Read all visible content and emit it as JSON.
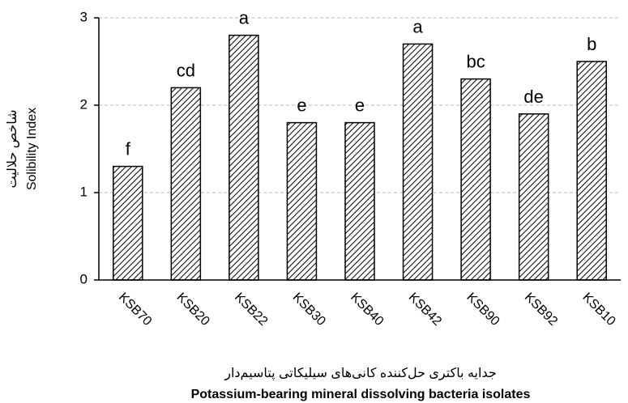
{
  "chart_data": {
    "type": "bar",
    "y_label": "Solibility Index",
    "y_label_fa": "شاخص حلالیت",
    "x_label_fa": "جدایه باکتری حل‌کننده کانی‌های سیلیکاتی پتاسیم‌دار",
    "x_label": "Potassium-bearing mineral dissolving bacteria isolates",
    "categories": [
      "KSB70",
      "KSB20",
      "KSB22",
      "KSB30",
      "KSB40",
      "KSB42",
      "KSB90",
      "KSB92",
      "KSB10"
    ],
    "values": [
      1.3,
      2.2,
      2.8,
      1.8,
      1.8,
      2.7,
      2.3,
      1.9,
      2.5
    ],
    "annotations": [
      "f",
      "cd",
      "a",
      "e",
      "e",
      "a",
      "bc",
      "de",
      "b"
    ],
    "color": "#000000",
    "ylim": [
      0,
      3
    ],
    "yticks": [
      0,
      1,
      2,
      3
    ],
    "grid": true
  }
}
